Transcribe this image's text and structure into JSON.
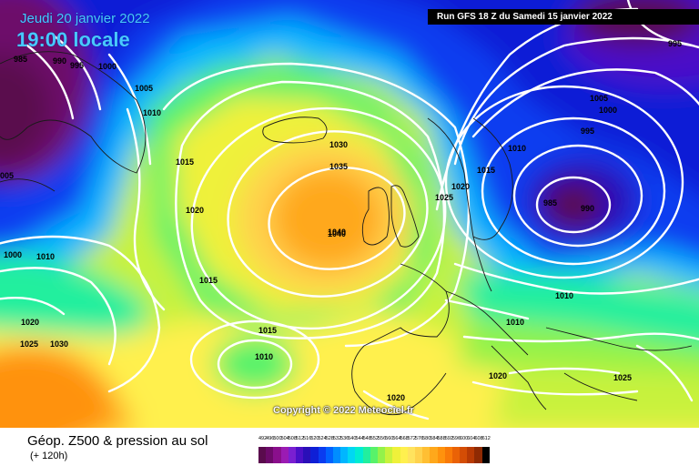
{
  "header": {
    "date": "Jeudi 20 janvier 2022",
    "time": "19:00 locale",
    "run": "Run GFS 18 Z du Samedi 15 janvier 2022",
    "copyright": "Copyright © 2022 Meteociel.fr"
  },
  "legend": {
    "title": "Géop. Z500 & pression au sol",
    "subtitle": "(+ 120h)",
    "scale_values": [
      "492",
      "496",
      "500",
      "504",
      "508",
      "512",
      "516",
      "520",
      "524",
      "528",
      "532",
      "536",
      "540",
      "544",
      "548",
      "552",
      "556",
      "560",
      "564",
      "568",
      "572",
      "576",
      "580",
      "584",
      "588",
      "592",
      "596",
      "600",
      "604",
      "608",
      "612"
    ],
    "scale_colors": [
      "#5a0b4d",
      "#6d0a6a",
      "#8a0f8c",
      "#9b1bb3",
      "#7a1fd1",
      "#4b10c7",
      "#2a0fb8",
      "#0f1fd6",
      "#0a3cf0",
      "#0062ff",
      "#008dff",
      "#00b6ff",
      "#00d7f3",
      "#00ecd2",
      "#22ef9e",
      "#58f26a",
      "#93f24a",
      "#c8f23c",
      "#eff13a",
      "#fff04e",
      "#ffe35e",
      "#ffd24d",
      "#ffbf33",
      "#ffa81b",
      "#ff920d",
      "#f97a08",
      "#ea6206",
      "#d44d05",
      "#b83a04",
      "#8f2a03",
      "#000000"
    ]
  },
  "map": {
    "isobar_labels": [
      {
        "text": "985"
      },
      {
        "text": "990"
      },
      {
        "text": "995"
      },
      {
        "text": "1000"
      },
      {
        "text": "1005"
      },
      {
        "text": "1010"
      },
      {
        "text": "1015"
      },
      {
        "text": "005"
      },
      {
        "text": "1020"
      },
      {
        "text": "1000"
      },
      {
        "text": "1010"
      },
      {
        "text": "1015"
      },
      {
        "text": "1020"
      },
      {
        "text": "1025"
      },
      {
        "text": "1030"
      },
      {
        "text": "1030"
      },
      {
        "text": "1035"
      },
      {
        "text": "1040"
      },
      {
        "text": "1015"
      },
      {
        "text": "1010"
      },
      {
        "text": "1025"
      },
      {
        "text": "1020"
      },
      {
        "text": "1015"
      },
      {
        "text": "1010"
      },
      {
        "text": "1005"
      },
      {
        "text": "1000"
      },
      {
        "text": "995"
      },
      {
        "text": "990"
      },
      {
        "text": "985"
      },
      {
        "text": "995"
      },
      {
        "text": "1010"
      },
      {
        "text": "1010"
      },
      {
        "text": "1020"
      },
      {
        "text": "1025"
      },
      {
        "text": "1020"
      }
    ]
  }
}
